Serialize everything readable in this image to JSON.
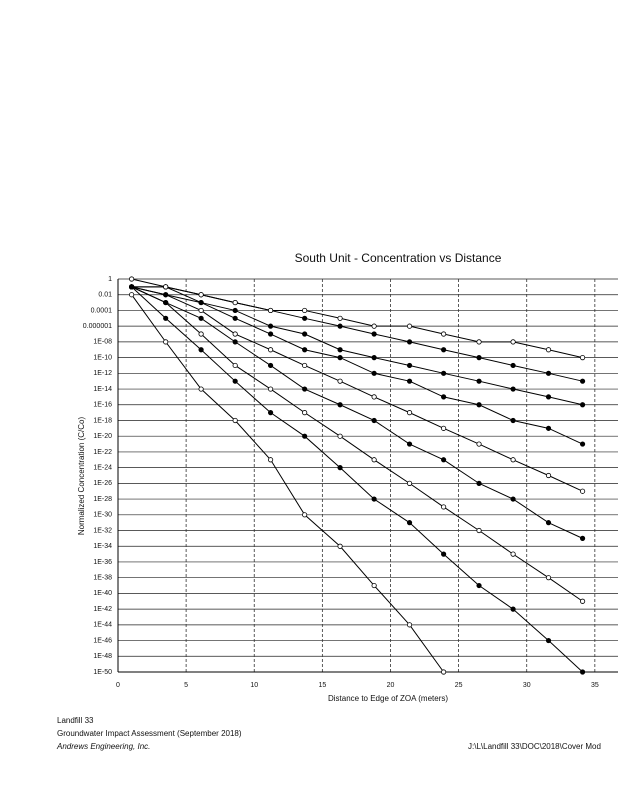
{
  "chart_data": {
    "type": "line",
    "title": "South Unit - Concentration vs Distance",
    "x_label": "Distance to Edge of ZOA (meters)",
    "y_label": "Normalized Concentration (C/Co)",
    "log_y": true,
    "grid": true,
    "xlim": [
      0,
      36.7
    ],
    "xticks": [
      0,
      5,
      10,
      15,
      20,
      25,
      30,
      35
    ],
    "ylim": [
      1e-50,
      1
    ],
    "yticks": [
      1,
      0.01,
      0.0001,
      1e-06,
      {
        "value": 1e-08,
        "label": "1E-08"
      },
      {
        "value": 1e-10,
        "label": "1E-10"
      },
      {
        "value": 1e-12,
        "label": "1E-12"
      },
      {
        "value": 1e-14,
        "label": "1E-14"
      },
      {
        "value": 1e-16,
        "label": "1E-16"
      },
      {
        "value": 1e-18,
        "label": "1E-18"
      },
      {
        "value": 1e-20,
        "label": "1E-20"
      },
      {
        "value": 1e-22,
        "label": "1E-22"
      },
      {
        "value": 1e-24,
        "label": "1E-24"
      },
      {
        "value": 1e-26,
        "label": "1E-26"
      },
      {
        "value": 1e-28,
        "label": "1E-28"
      },
      {
        "value": 1e-30,
        "label": "1E-30"
      },
      {
        "value": 1e-32,
        "label": "1E-32"
      },
      {
        "value": 1e-34,
        "label": "1E-34"
      },
      {
        "value": 1e-36,
        "label": "1E-36"
      },
      {
        "value": 1e-38,
        "label": "1E-38"
      },
      {
        "value": 1e-40,
        "label": "1E-40"
      },
      {
        "value": 1e-42,
        "label": "1E-42"
      },
      {
        "value": 1e-44,
        "label": "1E-44"
      },
      {
        "value": 1e-46,
        "label": "1E-46"
      },
      {
        "value": 1e-48,
        "label": "1E-48"
      },
      {
        "value": 1e-50,
        "label": "1E-50"
      }
    ],
    "x": [
      1,
      3.5,
      6.1,
      8.6,
      11.2,
      13.7,
      16.3,
      18.8,
      21.4,
      23.9,
      26.5,
      29,
      31.6,
      34.1
    ],
    "series": [
      {
        "color": "#000000",
        "marker": "open",
        "values": [
          0.01,
          1e-08,
          1e-14,
          1e-18,
          1e-23,
          1e-30,
          1e-34,
          1e-39,
          1e-44,
          1e-50,
          null,
          null,
          null,
          null
        ]
      },
      {
        "color": "#000000",
        "marker": "filled",
        "values": [
          0.1,
          1e-05,
          1e-09,
          1e-13,
          1e-17,
          1e-20,
          1e-24,
          1e-28,
          1e-31,
          1e-35,
          1e-39,
          1e-42,
          1e-46,
          1e-50
        ]
      },
      {
        "color": "#000000",
        "marker": "open",
        "values": [
          0.1,
          0.001,
          1e-07,
          1e-11,
          1e-14,
          1e-17,
          1e-20,
          1e-23,
          1e-26,
          1e-29,
          1e-32,
          1e-35,
          1e-38,
          1e-41
        ]
      },
      {
        "color": "#000000",
        "marker": "filled",
        "values": [
          0.1,
          0.001,
          1e-05,
          1e-08,
          1e-11,
          1e-14,
          1e-16,
          1e-18,
          1e-21,
          1e-23,
          1e-26,
          1e-28,
          1e-31,
          1e-33
        ]
      },
      {
        "color": "#000000",
        "marker": "open",
        "values": [
          0.1,
          0.01,
          0.0001,
          1e-07,
          1e-09,
          1e-11,
          1e-13,
          1e-15,
          1e-17,
          1e-19,
          1e-21,
          1e-23,
          1e-25,
          1e-27
        ]
      },
      {
        "color": "#000000",
        "marker": "filled",
        "values": [
          0.1,
          0.01,
          0.001,
          1e-05,
          1e-07,
          1e-09,
          1e-10,
          1e-12,
          1e-13,
          1e-15,
          1e-16,
          1e-18,
          1e-19,
          1e-21
        ]
      },
      {
        "color": "#000000",
        "marker": "filled",
        "values": [
          0.1,
          0.1,
          0.001,
          0.0001,
          1e-06,
          1e-07,
          1e-09,
          1e-10,
          1e-11,
          1e-12,
          1e-13,
          1e-14,
          1e-15,
          1e-16
        ]
      },
      {
        "color": "#000000",
        "marker": "filled",
        "values": [
          0.1,
          0.1,
          0.01,
          0.001,
          0.0001,
          1e-05,
          1e-06,
          1e-07,
          1e-08,
          1e-09,
          1e-10,
          1e-11,
          1e-12,
          1e-13
        ]
      },
      {
        "color": "#000000",
        "marker": "open",
        "values": [
          1,
          0.1,
          0.01,
          0.001,
          0.0001,
          0.0001,
          1e-05,
          1e-06,
          1e-06,
          1e-07,
          1e-08,
          1e-08,
          1e-09,
          1e-10
        ]
      }
    ]
  },
  "footer": {
    "project": "Landfill 33",
    "report": "Groundwater Impact Assessment (September 2018)",
    "company": "Andrews Engineering, Inc.",
    "path": "J:\\L\\Landfill 33\\DOC\\2018\\Cover Mod"
  }
}
